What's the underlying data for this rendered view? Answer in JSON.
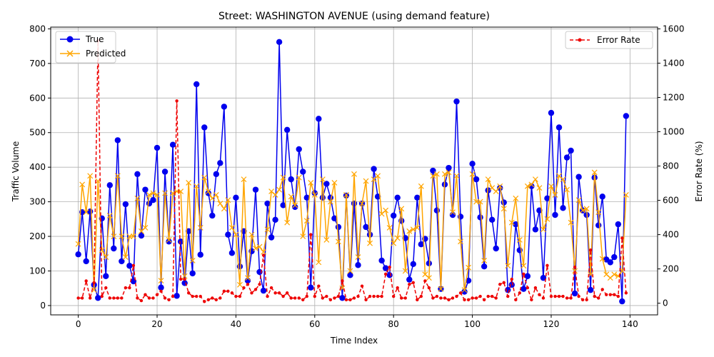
{
  "chart_data": {
    "type": "line",
    "title": "Street: WASHINGTON AVENUE (using demand feature)",
    "xlabel": "Time Index",
    "ylabel": "Traffic Volume",
    "y2label": "Error Rate (%)",
    "xlim": [
      -7,
      147
    ],
    "ylim": [
      -27,
      805
    ],
    "y2lim": [
      -68,
      1610
    ],
    "xticks": [
      0,
      20,
      40,
      60,
      80,
      100,
      120,
      140
    ],
    "yticks": [
      0,
      100,
      200,
      300,
      400,
      500,
      600,
      700,
      800
    ],
    "y2ticks": [
      0,
      200,
      400,
      600,
      800,
      1000,
      1200,
      1400,
      1600
    ],
    "grid": true,
    "legend_left": {
      "placement": "upper-left",
      "entries": [
        "True",
        "Predicted"
      ]
    },
    "legend_right": {
      "placement": "upper-right",
      "entries": [
        "Error Rate"
      ]
    },
    "colors": {
      "true": "#0000ee",
      "predicted": "#ffa500",
      "error": "#ee0000"
    },
    "series": [
      {
        "name": "True",
        "axis": "left",
        "color": "#0000ee",
        "marker": "circle",
        "style": "solid",
        "values": [
          148,
          270,
          128,
          272,
          60,
          22,
          252,
          85,
          348,
          165,
          478,
          128,
          293,
          115,
          70,
          380,
          202,
          335,
          295,
          305,
          456,
          52,
          387,
          185,
          465,
          28,
          185,
          65,
          215,
          93,
          640,
          147,
          515,
          325,
          260,
          380,
          412,
          575,
          205,
          152,
          312,
          113,
          215,
          72,
          157,
          335,
          97,
          43,
          295,
          197,
          248,
          762,
          290,
          508,
          365,
          285,
          452,
          387,
          312,
          52,
          325,
          540,
          312,
          352,
          312,
          252,
          227,
          22,
          318,
          88,
          295,
          117,
          295,
          227,
          205,
          395,
          315,
          130,
          108,
          88,
          260,
          312,
          245,
          195,
          75,
          120,
          312,
          177,
          193,
          122,
          390,
          275,
          48,
          350,
          398,
          262,
          590,
          257,
          40,
          72,
          410,
          365,
          255,
          113,
          333,
          248,
          165,
          340,
          298,
          45,
          60,
          235,
          160,
          48,
          85,
          345,
          220,
          275,
          80,
          310,
          557,
          262,
          515,
          282,
          428,
          448,
          35,
          372,
          275,
          262,
          45,
          370,
          232,
          315,
          133,
          125,
          140,
          235,
          12,
          548
        ]
      },
      {
        "name": "Predicted",
        "axis": "left",
        "color": "#ffa500",
        "marker": "x",
        "style": "solid",
        "values": [
          178,
          350,
          270,
          375,
          45,
          360,
          160,
          140,
          260,
          200,
          375,
          200,
          140,
          200,
          200,
          310,
          215,
          225,
          320,
          325,
          320,
          72,
          325,
          190,
          325,
          330,
          330,
          85,
          355,
          130,
          345,
          225,
          370,
          330,
          310,
          320,
          295,
          280,
          305,
          225,
          205,
          60,
          365,
          80,
          205,
          165,
          170,
          155,
          220,
          330,
          320,
          335,
          370,
          240,
          315,
          290,
          370,
          200,
          245,
          355,
          320,
          125,
          365,
          190,
          300,
          355,
          185,
          50,
          320,
          100,
          380,
          140,
          295,
          360,
          180,
          365,
          375,
          265,
          275,
          225,
          180,
          195,
          280,
          100,
          215,
          220,
          225,
          345,
          90,
          80,
          375,
          380,
          48,
          380,
          385,
          270,
          375,
          185,
          45,
          110,
          380,
          300,
          300,
          130,
          365,
          340,
          330,
          345,
          280,
          115,
          240,
          310,
          190,
          115,
          345,
          350,
          365,
          340,
          220,
          250,
          345,
          320,
          375,
          365,
          335,
          240,
          100,
          305,
          275,
          280,
          90,
          385,
          270,
          135,
          90,
          80,
          90,
          85,
          100,
          320
        ]
      },
      {
        "name": "Error Rate",
        "axis": "right",
        "color": "#ee0000",
        "marker": "dot",
        "style": "dashed",
        "values": [
          30,
          30,
          130,
          30,
          120,
          1530,
          40,
          90,
          30,
          30,
          30,
          30,
          90,
          90,
          220,
          30,
          15,
          50,
          30,
          30,
          50,
          70,
          30,
          20,
          40,
          1180,
          140,
          140,
          60,
          40,
          40,
          40,
          10,
          20,
          30,
          20,
          30,
          70,
          70,
          60,
          40,
          40,
          90,
          110,
          60,
          80,
          110,
          280,
          40,
          90,
          60,
          60,
          40,
          60,
          30,
          30,
          30,
          20,
          40,
          400,
          40,
          100,
          30,
          40,
          20,
          30,
          40,
          130,
          20,
          20,
          30,
          40,
          100,
          20,
          40,
          40,
          40,
          40,
          170,
          210,
          40,
          90,
          30,
          30,
          110,
          120,
          20,
          40,
          130,
          90,
          30,
          40,
          30,
          30,
          20,
          30,
          40,
          60,
          20,
          20,
          30,
          30,
          40,
          20,
          40,
          40,
          30,
          110,
          120,
          40,
          140,
          20,
          60,
          170,
          90,
          20,
          90,
          50,
          30,
          220,
          40,
          40,
          40,
          40,
          30,
          30,
          210,
          40,
          20,
          20,
          310,
          40,
          30,
          80,
          50,
          50,
          50,
          40,
          380,
          60
        ]
      }
    ]
  }
}
